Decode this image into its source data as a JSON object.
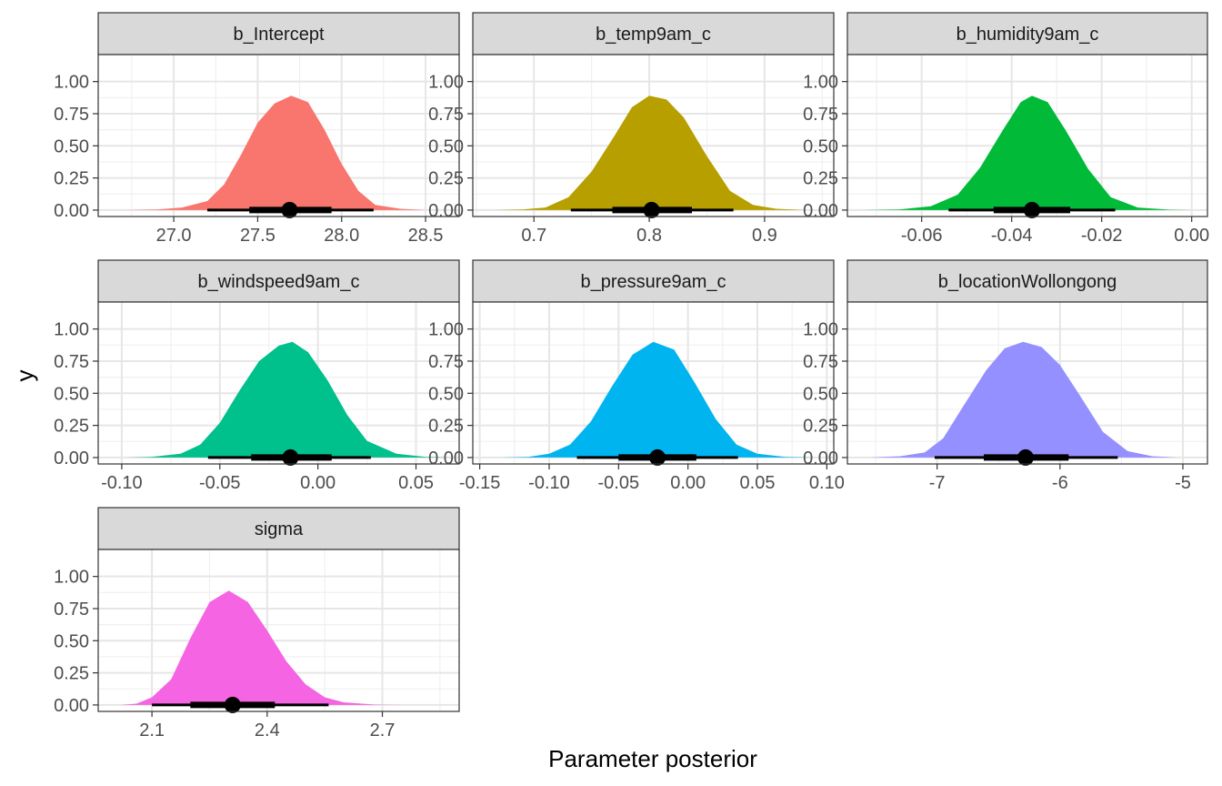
{
  "figure": {
    "xlabel": "Parameter posterior",
    "ylabel": "y"
  },
  "chart_data": [
    {
      "type": "area",
      "title": "b_Intercept",
      "color": "#F8766D",
      "xlim": [
        26.55,
        28.7
      ],
      "ylim": [
        0,
        1
      ],
      "xticks": [
        27.0,
        27.5,
        28.0,
        28.5
      ],
      "xtick_labels": [
        "27.0",
        "27.5",
        "28.0",
        "28.5"
      ],
      "yticks": [
        0,
        0.25,
        0.5,
        0.75,
        1.0
      ],
      "ytick_labels": [
        "0.00",
        "0.25",
        "0.50",
        "0.75",
        "1.00"
      ],
      "density": [
        {
          "x": 26.72,
          "y": 0.0
        },
        {
          "x": 26.9,
          "y": 0.005
        },
        {
          "x": 27.05,
          "y": 0.02
        },
        {
          "x": 27.2,
          "y": 0.07
        },
        {
          "x": 27.3,
          "y": 0.2
        },
        {
          "x": 27.4,
          "y": 0.43
        },
        {
          "x": 27.5,
          "y": 0.68
        },
        {
          "x": 27.6,
          "y": 0.83
        },
        {
          "x": 27.7,
          "y": 0.89
        },
        {
          "x": 27.8,
          "y": 0.84
        },
        {
          "x": 27.9,
          "y": 0.62
        },
        {
          "x": 28.0,
          "y": 0.36
        },
        {
          "x": 28.1,
          "y": 0.15
        },
        {
          "x": 28.2,
          "y": 0.04
        },
        {
          "x": 28.35,
          "y": 0.01
        },
        {
          "x": 28.5,
          "y": 0.0
        }
      ],
      "point": 27.69,
      "interval_inner": [
        27.45,
        27.94
      ],
      "interval_outer": [
        27.2,
        28.19
      ]
    },
    {
      "type": "area",
      "title": "b_temp9am_c",
      "color": "#B79F00",
      "xlim": [
        0.647,
        0.96
      ],
      "ylim": [
        0,
        1
      ],
      "xticks": [
        0.7,
        0.8,
        0.9
      ],
      "xtick_labels": [
        "0.7",
        "0.8",
        "0.9"
      ],
      "yticks": [
        0,
        0.25,
        0.5,
        0.75,
        1.0
      ],
      "ytick_labels": [
        "0.00",
        "0.25",
        "0.50",
        "0.75",
        "1.00"
      ],
      "density": [
        {
          "x": 0.665,
          "y": 0.0
        },
        {
          "x": 0.69,
          "y": 0.005
        },
        {
          "x": 0.71,
          "y": 0.02
        },
        {
          "x": 0.73,
          "y": 0.1
        },
        {
          "x": 0.75,
          "y": 0.3
        },
        {
          "x": 0.77,
          "y": 0.58
        },
        {
          "x": 0.785,
          "y": 0.8
        },
        {
          "x": 0.8,
          "y": 0.89
        },
        {
          "x": 0.815,
          "y": 0.86
        },
        {
          "x": 0.83,
          "y": 0.72
        },
        {
          "x": 0.85,
          "y": 0.42
        },
        {
          "x": 0.87,
          "y": 0.15
        },
        {
          "x": 0.89,
          "y": 0.04
        },
        {
          "x": 0.91,
          "y": 0.01
        },
        {
          "x": 0.935,
          "y": 0.0
        }
      ],
      "point": 0.802,
      "interval_inner": [
        0.768,
        0.837
      ],
      "interval_outer": [
        0.732,
        0.873
      ]
    },
    {
      "type": "area",
      "title": "b_humidity9am_c",
      "color": "#00BA38",
      "xlim": [
        -0.0765,
        0.0035
      ],
      "ylim": [
        0,
        1
      ],
      "xticks": [
        -0.06,
        -0.04,
        -0.02,
        0.0
      ],
      "xtick_labels": [
        "-0.06",
        "-0.04",
        "-0.02",
        "0.00"
      ],
      "yticks": [
        0,
        0.25,
        0.5,
        0.75,
        1.0
      ],
      "ytick_labels": [
        "0.00",
        "0.25",
        "0.50",
        "0.75",
        "1.00"
      ],
      "density": [
        {
          "x": -0.073,
          "y": 0.0
        },
        {
          "x": -0.065,
          "y": 0.005
        },
        {
          "x": -0.058,
          "y": 0.03
        },
        {
          "x": -0.052,
          "y": 0.12
        },
        {
          "x": -0.047,
          "y": 0.33
        },
        {
          "x": -0.042,
          "y": 0.62
        },
        {
          "x": -0.038,
          "y": 0.84
        },
        {
          "x": -0.0355,
          "y": 0.89
        },
        {
          "x": -0.032,
          "y": 0.84
        },
        {
          "x": -0.028,
          "y": 0.62
        },
        {
          "x": -0.023,
          "y": 0.32
        },
        {
          "x": -0.018,
          "y": 0.1
        },
        {
          "x": -0.012,
          "y": 0.02
        },
        {
          "x": -0.005,
          "y": 0.003
        },
        {
          "x": 0.0,
          "y": 0.0
        }
      ],
      "point": -0.0355,
      "interval_inner": [
        -0.044,
        -0.027
      ],
      "interval_outer": [
        -0.054,
        -0.017
      ]
    },
    {
      "type": "area",
      "title": "b_windspeed9am_c",
      "color": "#00C08B",
      "xlim": [
        -0.112,
        0.072
      ],
      "ylim": [
        0,
        1
      ],
      "xticks": [
        -0.1,
        -0.05,
        0.0,
        0.05
      ],
      "xtick_labels": [
        "-0.10",
        "-0.05",
        "0.00",
        "0.05"
      ],
      "yticks": [
        0,
        0.25,
        0.5,
        0.75,
        1.0
      ],
      "ytick_labels": [
        "0.00",
        "0.25",
        "0.50",
        "0.75",
        "1.00"
      ],
      "density": [
        {
          "x": -0.097,
          "y": 0.0
        },
        {
          "x": -0.085,
          "y": 0.005
        },
        {
          "x": -0.07,
          "y": 0.03
        },
        {
          "x": -0.06,
          "y": 0.1
        },
        {
          "x": -0.05,
          "y": 0.27
        },
        {
          "x": -0.04,
          "y": 0.52
        },
        {
          "x": -0.03,
          "y": 0.75
        },
        {
          "x": -0.02,
          "y": 0.87
        },
        {
          "x": -0.013,
          "y": 0.9
        },
        {
          "x": -0.005,
          "y": 0.82
        },
        {
          "x": 0.005,
          "y": 0.6
        },
        {
          "x": 0.015,
          "y": 0.33
        },
        {
          "x": 0.025,
          "y": 0.13
        },
        {
          "x": 0.04,
          "y": 0.03
        },
        {
          "x": 0.055,
          "y": 0.005
        },
        {
          "x": 0.068,
          "y": 0.0
        }
      ],
      "point": -0.014,
      "interval_inner": [
        -0.034,
        0.007
      ],
      "interval_outer": [
        -0.056,
        0.027
      ]
    },
    {
      "type": "area",
      "title": "b_pressure9am_c",
      "color": "#00B4EF",
      "xlim": [
        -0.155,
        0.105
      ],
      "ylim": [
        0,
        1
      ],
      "xticks": [
        -0.15,
        -0.1,
        -0.05,
        0.0,
        0.05,
        0.1
      ],
      "xtick_labels": [
        "-0.15",
        "-0.10",
        "-0.05",
        "0.00",
        "0.05",
        "0.10"
      ],
      "yticks": [
        0,
        0.25,
        0.5,
        0.75,
        1.0
      ],
      "ytick_labels": [
        "0.00",
        "0.25",
        "0.50",
        "0.75",
        "1.00"
      ],
      "density": [
        {
          "x": -0.135,
          "y": 0.0
        },
        {
          "x": -0.115,
          "y": 0.005
        },
        {
          "x": -0.1,
          "y": 0.03
        },
        {
          "x": -0.085,
          "y": 0.1
        },
        {
          "x": -0.07,
          "y": 0.28
        },
        {
          "x": -0.055,
          "y": 0.55
        },
        {
          "x": -0.04,
          "y": 0.8
        },
        {
          "x": -0.025,
          "y": 0.9
        },
        {
          "x": -0.01,
          "y": 0.84
        },
        {
          "x": 0.005,
          "y": 0.58
        },
        {
          "x": 0.02,
          "y": 0.3
        },
        {
          "x": 0.035,
          "y": 0.1
        },
        {
          "x": 0.05,
          "y": 0.03
        },
        {
          "x": 0.07,
          "y": 0.005
        },
        {
          "x": 0.09,
          "y": 0.0
        }
      ],
      "point": -0.022,
      "interval_inner": [
        -0.05,
        0.006
      ],
      "interval_outer": [
        -0.08,
        0.036
      ]
    },
    {
      "type": "area",
      "title": "b_locationWollongong",
      "color": "#9590FF",
      "xlim": [
        -7.73,
        -4.8
      ],
      "ylim": [
        0,
        1
      ],
      "xticks": [
        -7,
        -6,
        -5
      ],
      "xtick_labels": [
        "-7",
        "-6",
        "-5"
      ],
      "yticks": [
        0,
        0.25,
        0.5,
        0.75,
        1.0
      ],
      "ytick_labels": [
        "0.00",
        "0.25",
        "0.50",
        "0.75",
        "1.00"
      ],
      "density": [
        {
          "x": -7.55,
          "y": 0.0
        },
        {
          "x": -7.3,
          "y": 0.01
        },
        {
          "x": -7.1,
          "y": 0.04
        },
        {
          "x": -6.95,
          "y": 0.15
        },
        {
          "x": -6.8,
          "y": 0.38
        },
        {
          "x": -6.6,
          "y": 0.68
        },
        {
          "x": -6.45,
          "y": 0.85
        },
        {
          "x": -6.3,
          "y": 0.9
        },
        {
          "x": -6.15,
          "y": 0.86
        },
        {
          "x": -6.0,
          "y": 0.72
        },
        {
          "x": -5.85,
          "y": 0.5
        },
        {
          "x": -5.65,
          "y": 0.2
        },
        {
          "x": -5.45,
          "y": 0.05
        },
        {
          "x": -5.25,
          "y": 0.01
        },
        {
          "x": -5.05,
          "y": 0.0
        }
      ],
      "point": -6.28,
      "interval_inner": [
        -6.62,
        -5.93
      ],
      "interval_outer": [
        -7.02,
        -5.53
      ]
    },
    {
      "type": "area",
      "title": "sigma",
      "color": "#F564E3",
      "xlim": [
        1.96,
        2.9
      ],
      "ylim": [
        0,
        1
      ],
      "xticks": [
        2.1,
        2.4,
        2.7
      ],
      "xtick_labels": [
        "2.1",
        "2.4",
        "2.7"
      ],
      "yticks": [
        0,
        0.25,
        0.5,
        0.75,
        1.0
      ],
      "ytick_labels": [
        "0.00",
        "0.25",
        "0.50",
        "0.75",
        "1.00"
      ],
      "density": [
        {
          "x": 2.02,
          "y": 0.0
        },
        {
          "x": 2.06,
          "y": 0.01
        },
        {
          "x": 2.1,
          "y": 0.06
        },
        {
          "x": 2.15,
          "y": 0.2
        },
        {
          "x": 2.2,
          "y": 0.52
        },
        {
          "x": 2.25,
          "y": 0.8
        },
        {
          "x": 2.3,
          "y": 0.89
        },
        {
          "x": 2.35,
          "y": 0.8
        },
        {
          "x": 2.4,
          "y": 0.58
        },
        {
          "x": 2.45,
          "y": 0.34
        },
        {
          "x": 2.5,
          "y": 0.16
        },
        {
          "x": 2.55,
          "y": 0.06
        },
        {
          "x": 2.6,
          "y": 0.02
        },
        {
          "x": 2.68,
          "y": 0.003
        },
        {
          "x": 2.75,
          "y": 0.0
        }
      ],
      "point": 2.31,
      "interval_inner": [
        2.2,
        2.42
      ],
      "interval_outer": [
        2.1,
        2.56
      ]
    }
  ]
}
